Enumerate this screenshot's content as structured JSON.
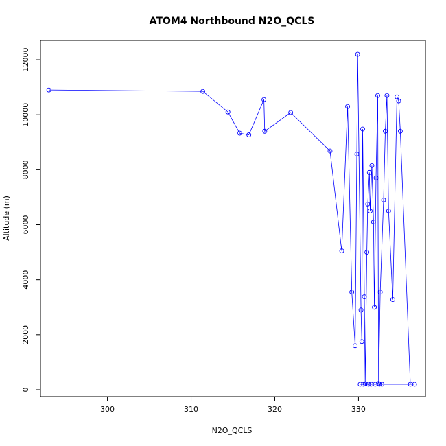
{
  "chart_data": {
    "type": "scatter",
    "title": "ATOM4 Northbound N2O_QCLS",
    "xlabel": "N2O_QCLS",
    "ylabel": "Altitude (m)",
    "xlim": [
      292,
      338
    ],
    "ylim": [
      -250,
      12700
    ],
    "xticks": [
      300,
      310,
      320,
      330
    ],
    "yticks": [
      0,
      2000,
      4000,
      6000,
      8000,
      10000,
      12000
    ],
    "point_style": "open-circle",
    "line_color": "#0000ff",
    "marker_color": "#0000ff",
    "x": [
      293.0,
      311.4,
      314.4,
      315.8,
      316.9,
      318.7,
      318.8,
      321.9,
      326.6,
      328.0,
      328.7,
      329.2,
      329.6,
      329.8,
      329.9,
      330.3,
      330.4,
      330.5,
      330.7,
      330.8,
      331.0,
      331.1,
      331.3,
      331.4,
      331.6,
      331.8,
      331.9,
      332.1,
      332.3,
      332.4,
      332.6,
      333.0,
      333.2,
      333.4,
      333.6,
      334.1,
      334.6,
      334.8,
      335.0,
      336.2,
      336.7,
      330.2,
      330.6,
      331.2,
      331.5,
      332.0,
      332.5,
      332.8
    ],
    "y": [
      10900,
      10850,
      10100,
      9330,
      9270,
      10550,
      9400,
      10080,
      8680,
      5050,
      10300,
      3550,
      1600,
      8570,
      12200,
      2900,
      1750,
      9480,
      3380,
      220,
      5000,
      6750,
      7900,
      6500,
      8150,
      6100,
      3000,
      7700,
      10700,
      230,
      3550,
      6900,
      9400,
      10700,
      6500,
      3280,
      10650,
      10500,
      9400,
      200,
      200,
      200,
      200,
      200,
      200,
      200,
      200,
      200
    ]
  }
}
